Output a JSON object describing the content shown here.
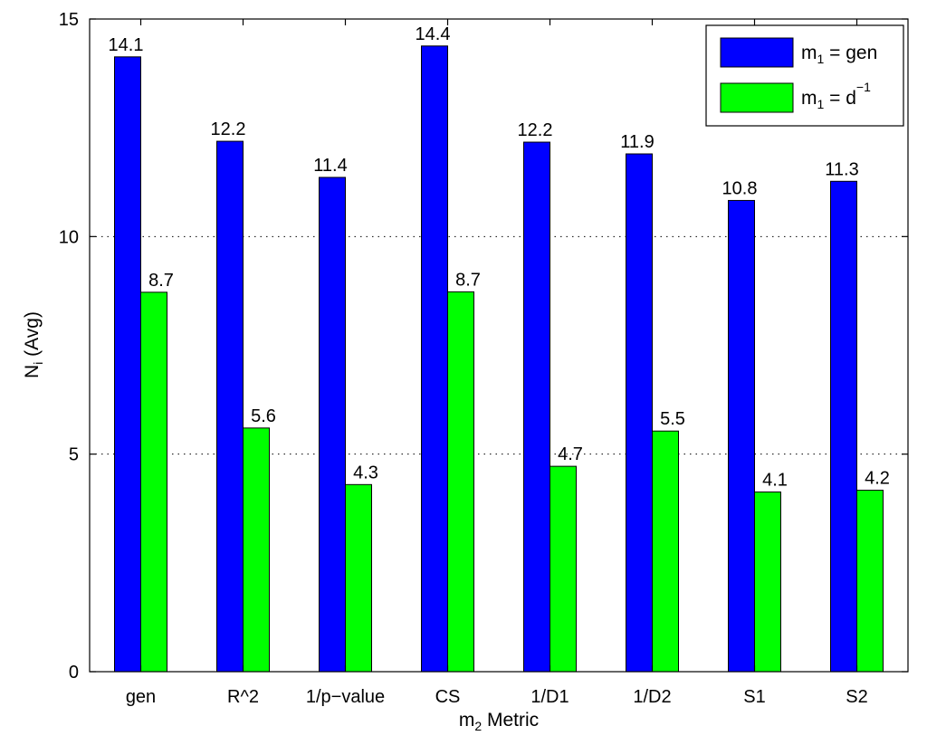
{
  "chart_data": {
    "type": "bar",
    "title": "",
    "categories": [
      "gen",
      "R^2",
      "1/p−value",
      "CS",
      "1/D1",
      "1/D2",
      "S1",
      "S2"
    ],
    "series": [
      {
        "name": "m1 = gen",
        "values": [
          14.13,
          12.19,
          11.36,
          14.38,
          12.17,
          11.9,
          10.83,
          11.27
        ],
        "labels": [
          "14.1",
          "12.2",
          "11.4",
          "14.4",
          "12.2",
          "11.9",
          "10.8",
          "11.3"
        ],
        "color": "#0000ff"
      },
      {
        "name": "m1 = d−1",
        "values": [
          8.72,
          5.6,
          4.3,
          8.73,
          4.72,
          5.53,
          4.13,
          4.17
        ],
        "labels": [
          "8.7",
          "5.6",
          "4.3",
          "8.7",
          "4.7",
          "5.5",
          "4.1",
          "4.2"
        ],
        "color": "#00ff00"
      }
    ],
    "xlabel": {
      "main": "m",
      "sub": "2",
      "rest": " Metric"
    },
    "ylabel": {
      "main": "N",
      "sub": "i",
      "rest": " (Avg)"
    },
    "ylim": [
      0,
      15
    ],
    "yticks": [
      "0",
      "5",
      "10",
      "15"
    ],
    "grid": "y-dotted",
    "legend": {
      "placement": "top-right",
      "entries": [
        {
          "main": "m",
          "sub": "1",
          "rest": " = gen",
          "sup": ""
        },
        {
          "main": "m",
          "sub": "1",
          "rest": " = d",
          "sup": "−1"
        }
      ]
    }
  }
}
